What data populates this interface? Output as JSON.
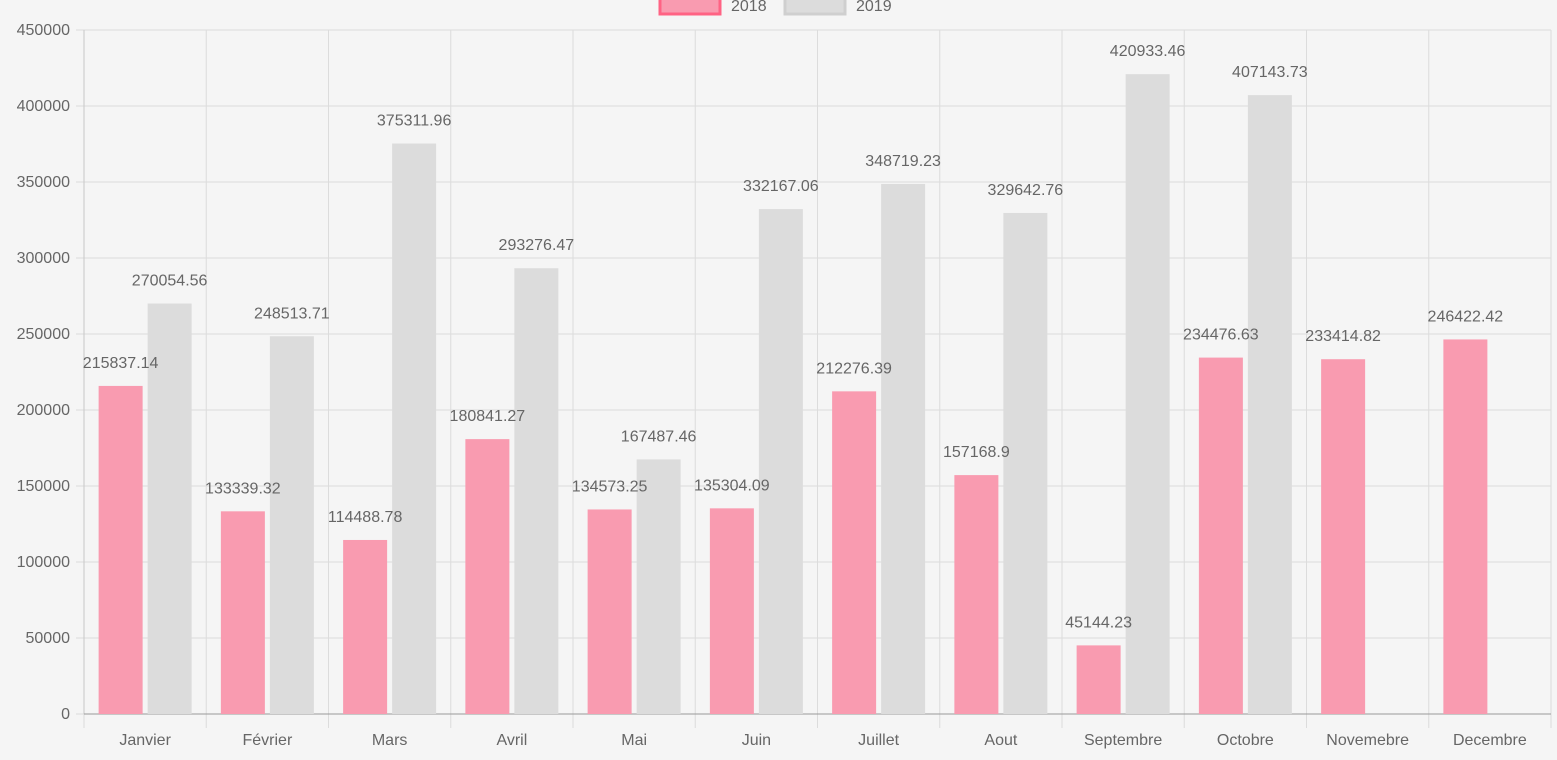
{
  "chart_data": {
    "type": "bar",
    "categories": [
      "Janvier",
      "Février",
      "Mars",
      "Avril",
      "Mai",
      "Juin",
      "Juillet",
      "Aout",
      "Septembre",
      "Octobre",
      "Novemebre",
      "Decembre"
    ],
    "series": [
      {
        "name": "2018",
        "color": "#f99bb0",
        "border_color": "#ff6384",
        "values": [
          215837.14,
          133339.32,
          114488.78,
          180841.27,
          134573.25,
          135304.09,
          212276.39,
          157168.9,
          45144.23,
          234476.63,
          233414.82,
          246422.42
        ]
      },
      {
        "name": "2019",
        "color": "#dcdcdc",
        "border_color": "#cfcfcf",
        "values": [
          270054.56,
          248513.71,
          375311.96,
          293276.47,
          167487.46,
          332167.06,
          348719.23,
          329642.76,
          420933.46,
          407143.73,
          null,
          null
        ]
      }
    ],
    "ylim": [
      0,
      450000
    ],
    "yticks": [
      0,
      50000,
      100000,
      150000,
      200000,
      250000,
      300000,
      350000,
      400000,
      450000
    ],
    "grid": true,
    "legend_position": "top",
    "data_labels": true
  }
}
